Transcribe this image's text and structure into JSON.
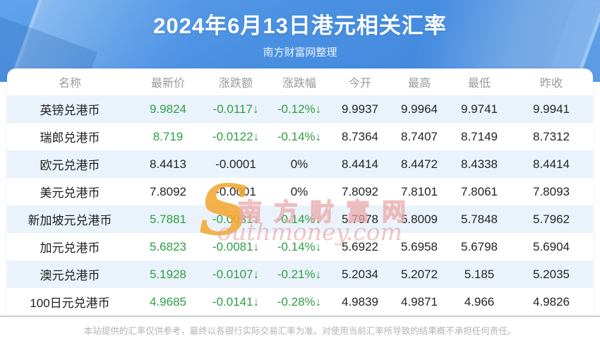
{
  "header": {
    "title": "2024年6月13日港元相关汇率",
    "subtitle": "南方财富网整理"
  },
  "watermark": {
    "initial": "S",
    "cn_text": "南方财富网",
    "en_text": "outhmoney.com"
  },
  "footer": {
    "disclaimer": "本站提供的汇率仅供参考，最终以各银行实际交易汇率为准。对使用当前汇率所导致的结果概不承担任何责任。"
  },
  "colors": {
    "hero_blue": "#4a90e2",
    "stripe_blue": "#eaf3fb",
    "down_green": "#2e9e44",
    "header_gray": "#9a9a9a",
    "watermark_pink": "#e9a1a1",
    "watermark_gold": "#f3a731"
  },
  "chart_data": {
    "type": "table",
    "title": "2024年6月13日港元相关汇率",
    "subtitle": "南方财富网整理",
    "columns": [
      "名称",
      "最新价",
      "涨跌额",
      "涨跌幅",
      "今开",
      "最高",
      "最低",
      "昨收"
    ],
    "rows": [
      {
        "down": true,
        "cells": [
          "英镑兑港币",
          "9.9824",
          "-0.0117↓",
          "-0.12%↓",
          "9.9937",
          "9.9964",
          "9.9741",
          "9.9941"
        ]
      },
      {
        "down": true,
        "cells": [
          "瑞郎兑港币",
          "8.719",
          "-0.0122↓",
          "-0.14%↓",
          "8.7364",
          "8.7407",
          "8.7149",
          "8.7312"
        ]
      },
      {
        "down": false,
        "cells": [
          "欧元兑港币",
          "8.4413",
          "-0.0001",
          "0%",
          "8.4414",
          "8.4472",
          "8.4338",
          "8.4414"
        ]
      },
      {
        "down": false,
        "cells": [
          "美元兑港币",
          "7.8092",
          "-0.0001",
          "0%",
          "7.8092",
          "7.8101",
          "7.8061",
          "7.8093"
        ]
      },
      {
        "down": true,
        "cells": [
          "新加坡元兑港币",
          "5.7881",
          "-0.0081↓",
          "-0.14%↓",
          "5.7978",
          "5.8009",
          "5.7848",
          "5.7962"
        ]
      },
      {
        "down": true,
        "cells": [
          "加元兑港币",
          "5.6823",
          "-0.0081↓",
          "-0.14%↓",
          "5.6922",
          "5.6958",
          "5.6798",
          "5.6904"
        ]
      },
      {
        "down": true,
        "cells": [
          "澳元兑港币",
          "5.1928",
          "-0.0107↓",
          "-0.21%↓",
          "5.2034",
          "5.2072",
          "5.185",
          "5.2035"
        ]
      },
      {
        "down": true,
        "cells": [
          "100日元兑港币",
          "4.9685",
          "-0.0141↓",
          "-0.28%↓",
          "4.9839",
          "4.9871",
          "4.966",
          "4.9826"
        ]
      }
    ]
  }
}
